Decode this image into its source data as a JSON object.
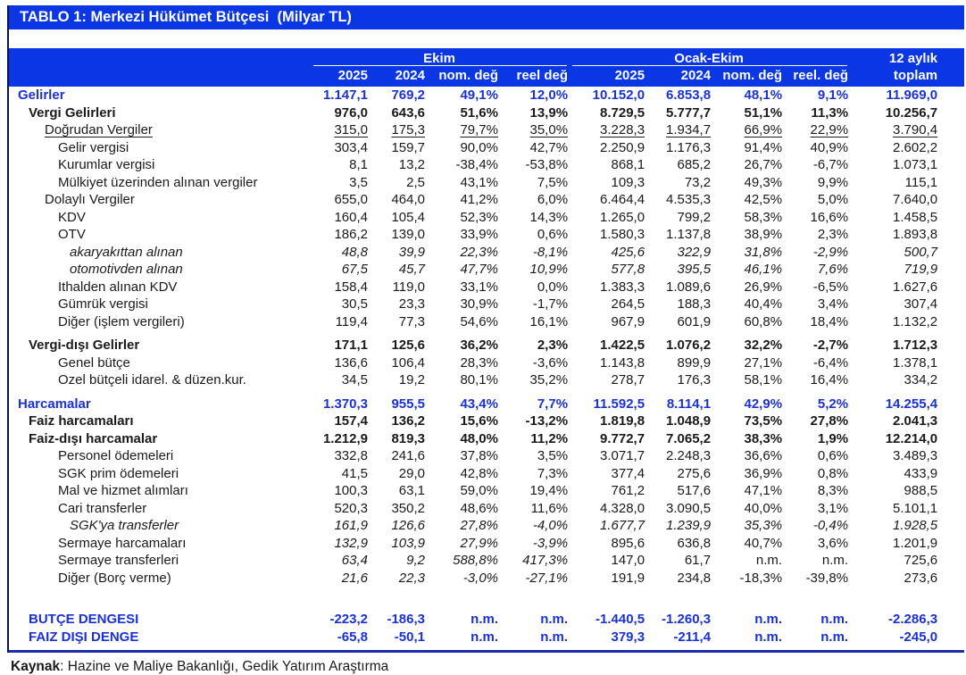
{
  "title": "TABLO 1: Merkezi Hükümet Bütçesi  (Milyar TL)",
  "colors": {
    "header_band_blue": "#0a36e4",
    "accent_text_blue": "#1a31d4",
    "bottom_rule_blue": "#1e2cb0",
    "body_text": "#1a1a1a"
  },
  "header": {
    "group_ekim": "Ekim",
    "group_ocak": "Ocak-Ekim",
    "group_toplam_line1": "12 aylık",
    "cols_ekim": [
      "2025",
      "2024",
      "nom. değ",
      "reel değ"
    ],
    "cols_ocak": [
      "2025",
      "2024",
      "nom. değ",
      "reel. değ"
    ],
    "col_toplam": "toplam"
  },
  "footer": {
    "source_label": "Kaynak",
    "source_text": ": Hazine ve Maliye Bakanlığı, Gedik Yatırım Araştırma"
  },
  "chart_data": {
    "type": "table",
    "title": "TABLO 1: Merkezi Hükümet Bütçesi (Milyar TL)",
    "column_groups": [
      "Ekim",
      "Ocak-Ekim",
      "12 aylık"
    ],
    "columns": [
      "Ekim 2025",
      "Ekim 2024",
      "Ekim nom. değ",
      "Ekim reel değ",
      "Ocak-Ekim 2025",
      "Ocak-Ekim 2024",
      "Ocak-Ekim nom. değ",
      "Ocak-Ekim reel. değ",
      "12 aylık toplam"
    ],
    "rows": [
      {
        "label": "Gelirler",
        "indent": 0,
        "style": "blue",
        "values": [
          "1.147,1",
          "769,2",
          "49,1%",
          "12,0%",
          "10.152,0",
          "6.853,8",
          "48,1%",
          "9,1%",
          "11.969,0"
        ]
      },
      {
        "label": "Vergi Gelirleri",
        "indent": 1,
        "style": "bold",
        "values": [
          "976,0",
          "643,6",
          "51,6%",
          "13,9%",
          "8.729,5",
          "5.777,7",
          "51,1%",
          "11,3%",
          "10.256,7"
        ]
      },
      {
        "label": "Doğrudan Vergiler",
        "indent": 2,
        "style": "underline",
        "values": [
          "315,0",
          "175,3",
          "79,7%",
          "35,0%",
          "3.228,3",
          "1.934,7",
          "66,9%",
          "22,9%",
          "3.790,4"
        ]
      },
      {
        "label": "Gelir vergisi",
        "indent": 3,
        "style": "normal",
        "values": [
          "303,4",
          "159,7",
          "90,0%",
          "42,7%",
          "2.250,9",
          "1.176,3",
          "91,4%",
          "40,9%",
          "2.602,2"
        ]
      },
      {
        "label": "Kurumlar vergisi",
        "indent": 3,
        "style": "normal",
        "values": [
          "8,1",
          "13,2",
          "-38,4%",
          "-53,8%",
          "868,1",
          "685,2",
          "26,7%",
          "-6,7%",
          "1.073,1"
        ]
      },
      {
        "label": "Mülkiyet üzerinden alınan vergiler",
        "indent": 3,
        "style": "normal",
        "values": [
          "3,5",
          "2,5",
          "43,1%",
          "7,5%",
          "109,3",
          "73,2",
          "49,3%",
          "9,9%",
          "115,1"
        ]
      },
      {
        "label": "Dolaylı Vergiler",
        "indent": 2,
        "style": "normal",
        "values": [
          "655,0",
          "464,0",
          "41,2%",
          "6,0%",
          "6.464,4",
          "4.535,3",
          "42,5%",
          "5,0%",
          "7.640,0"
        ]
      },
      {
        "label": "KDV",
        "indent": 3,
        "style": "normal",
        "values": [
          "160,4",
          "105,4",
          "52,3%",
          "14,3%",
          "1.265,0",
          "799,2",
          "58,3%",
          "16,6%",
          "1.458,5"
        ]
      },
      {
        "label": "OTV",
        "indent": 3,
        "style": "normal",
        "values": [
          "186,2",
          "139,0",
          "33,9%",
          "0,6%",
          "1.580,3",
          "1.137,8",
          "38,9%",
          "2,3%",
          "1.893,8"
        ]
      },
      {
        "label": "akaryakıttan alınan",
        "indent": 4,
        "style": "italic",
        "values": [
          "48,8",
          "39,9",
          "22,3%",
          "-8,1%",
          "425,6",
          "322,9",
          "31,8%",
          "-2,9%",
          "500,7"
        ]
      },
      {
        "label": "otomotivden alınan",
        "indent": 4,
        "style": "italic",
        "values": [
          "67,5",
          "45,7",
          "47,7%",
          "10,9%",
          "577,8",
          "395,5",
          "46,1%",
          "7,6%",
          "719,9"
        ]
      },
      {
        "label": "Ithalden alınan KDV",
        "indent": 3,
        "style": "normal",
        "values": [
          "158,4",
          "119,0",
          "33,1%",
          "0,0%",
          "1.383,3",
          "1.089,6",
          "26,9%",
          "-6,5%",
          "1.627,6"
        ]
      },
      {
        "label": "Gümrük vergisi",
        "indent": 3,
        "style": "normal",
        "values": [
          "30,5",
          "23,3",
          "30,9%",
          "-1,7%",
          "264,5",
          "188,3",
          "40,4%",
          "3,4%",
          "307,4"
        ]
      },
      {
        "label": "Diğer (işlem vergileri)",
        "indent": 3,
        "style": "normal",
        "values": [
          "119,4",
          "77,3",
          "54,6%",
          "16,1%",
          "967,9",
          "601,9",
          "60,8%",
          "18,4%",
          "1.132,2"
        ]
      },
      {
        "label": "Vergi-dışı Gelirler",
        "indent": 1,
        "style": "bold",
        "gap": "sm",
        "values": [
          "171,1",
          "125,6",
          "36,2%",
          "2,3%",
          "1.422,5",
          "1.076,2",
          "32,2%",
          "-2,7%",
          "1.712,3"
        ]
      },
      {
        "label": "Genel bütçe",
        "indent": 3,
        "style": "normal",
        "values": [
          "136,6",
          "106,4",
          "28,3%",
          "-3,6%",
          "1.143,8",
          "899,9",
          "27,1%",
          "-6,4%",
          "1.378,1"
        ]
      },
      {
        "label": "Ozel bütçeli idarel. & düzen.kur.",
        "indent": 3,
        "style": "normal",
        "values": [
          "34,5",
          "19,2",
          "80,1%",
          "35,2%",
          "278,7",
          "176,3",
          "58,1%",
          "16,4%",
          "334,2"
        ]
      },
      {
        "label": "Harcamalar",
        "indent": 0,
        "style": "blue",
        "gap": "sm",
        "values": [
          "1.370,3",
          "955,5",
          "43,4%",
          "7,7%",
          "11.592,5",
          "8.114,1",
          "42,9%",
          "5,2%",
          "14.255,4"
        ]
      },
      {
        "label": "Faiz harcamaları",
        "indent": 1,
        "style": "bold",
        "values": [
          "157,4",
          "136,2",
          "15,6%",
          "-13,2%",
          "1.819,8",
          "1.048,9",
          "73,5%",
          "27,8%",
          "2.041,3"
        ]
      },
      {
        "label": "Faiz-dışı harcamalar",
        "indent": 1,
        "style": "bold",
        "values": [
          "1.212,9",
          "819,3",
          "48,0%",
          "11,2%",
          "9.772,7",
          "7.065,2",
          "38,3%",
          "1,9%",
          "12.214,0"
        ]
      },
      {
        "label": "Personel ödemeleri",
        "indent": 3,
        "style": "normal",
        "values": [
          "332,8",
          "241,6",
          "37,8%",
          "3,5%",
          "3.071,7",
          "2.248,3",
          "36,6%",
          "0,6%",
          "3.489,3"
        ]
      },
      {
        "label": "SGK prim ödemeleri",
        "indent": 3,
        "style": "normal",
        "values": [
          "41,5",
          "29,0",
          "42,8%",
          "7,3%",
          "377,4",
          "275,6",
          "36,9%",
          "0,8%",
          "433,9"
        ]
      },
      {
        "label": "Mal ve hizmet alımları",
        "indent": 3,
        "style": "normal",
        "values": [
          "100,3",
          "63,1",
          "59,0%",
          "19,4%",
          "761,2",
          "517,6",
          "47,1%",
          "8,3%",
          "988,5"
        ]
      },
      {
        "label": "Cari transferler",
        "indent": 3,
        "style": "normal",
        "values": [
          "520,3",
          "350,2",
          "48,6%",
          "11,6%",
          "4.328,0",
          "3.090,5",
          "40,0%",
          "3,1%",
          "5.101,1"
        ]
      },
      {
        "label": "SGK'ya transferler",
        "indent": 4,
        "style": "italic",
        "values": [
          "161,9",
          "126,6",
          "27,8%",
          "-4,0%",
          "1.677,7",
          "1.239,9",
          "35,3%",
          "-0,4%",
          "1.928,5"
        ]
      },
      {
        "label": "Sermaye harcamaları",
        "indent": 3,
        "style": "italic4",
        "values": [
          "132,9",
          "103,9",
          "27,9%",
          "-3,9%",
          "895,6",
          "636,8",
          "40,7%",
          "3,6%",
          "1.201,9"
        ]
      },
      {
        "label": "Sermaye transferleri",
        "indent": 3,
        "style": "italic4",
        "values": [
          "63,4",
          "9,2",
          "588,8%",
          "417,3%",
          "147,0",
          "61,7",
          "n.m.",
          "n.m.",
          "725,6"
        ]
      },
      {
        "label": "Diğer (Borç verme)",
        "indent": 3,
        "style": "italic4",
        "values": [
          "21,6",
          "22,3",
          "-3,0%",
          "-27,1%",
          "191,9",
          "234,8",
          "-18,3%",
          "-39,8%",
          "273,6"
        ]
      },
      {
        "label": "BUTÇE DENGESI",
        "indent": 1,
        "style": "blue",
        "gap": "lg",
        "values": [
          "-223,2",
          "-186,3",
          "n.m.",
          "n.m.",
          "-1.440,5",
          "-1.260,3",
          "n.m.",
          "n.m.",
          "-2.286,3"
        ]
      },
      {
        "label": "FAIZ DIŞI DENGE",
        "indent": 1,
        "style": "blue",
        "values": [
          "-65,8",
          "-50,1",
          "n.m.",
          "n.m.",
          "379,3",
          "-211,4",
          "n.m.",
          "n.m.",
          "-245,0"
        ]
      }
    ]
  }
}
